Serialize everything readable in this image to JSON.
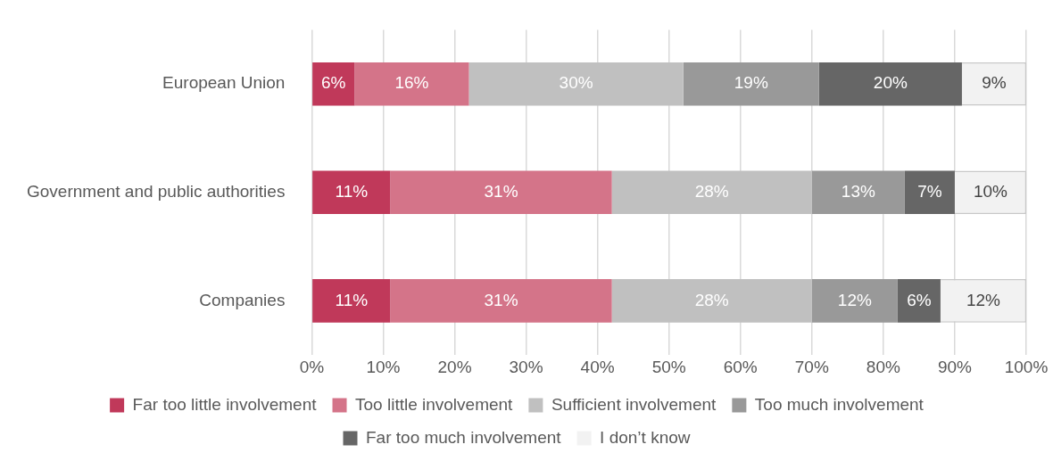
{
  "chart_data": {
    "type": "bar",
    "orientation": "horizontal",
    "stacked": true,
    "categories": [
      "European Union",
      "Government and public authorities",
      "Companies"
    ],
    "series": [
      {
        "name": "Far too little involvement",
        "color": "#c0395a",
        "values": [
          6,
          11,
          11
        ],
        "value_labels": [
          "6%",
          "11%",
          "11%"
        ]
      },
      {
        "name": "Too little involvement",
        "color": "#d47489",
        "values": [
          16,
          31,
          31
        ],
        "value_labels": [
          "16%",
          "31%",
          "31%"
        ]
      },
      {
        "name": "Sufficient involvement",
        "color": "#c0c0c0",
        "values": [
          30,
          28,
          28
        ],
        "value_labels": [
          "30%",
          "28%",
          "28%"
        ]
      },
      {
        "name": "Too much involvement",
        "color": "#999999",
        "values": [
          19,
          13,
          12
        ],
        "value_labels": [
          "19%",
          "13%",
          "12%"
        ]
      },
      {
        "name": "Far too much involvement",
        "color": "#666666",
        "values": [
          20,
          7,
          6
        ],
        "value_labels": [
          "20%",
          "7%",
          "6%"
        ]
      },
      {
        "name": "I don’t know",
        "color": "#f2f2f2",
        "values": [
          9,
          10,
          12
        ],
        "value_labels": [
          "9%",
          "10%",
          "12%"
        ]
      }
    ],
    "xlim": [
      0,
      100
    ],
    "xticks": [
      {
        "value": 0,
        "label": "0%"
      },
      {
        "value": 10,
        "label": "10%"
      },
      {
        "value": 20,
        "label": "20%"
      },
      {
        "value": 30,
        "label": "30%"
      },
      {
        "value": 40,
        "label": "40%"
      },
      {
        "value": 50,
        "label": "50%"
      },
      {
        "value": 60,
        "label": "60%"
      },
      {
        "value": 70,
        "label": "70%"
      },
      {
        "value": 80,
        "label": "80%"
      },
      {
        "value": 90,
        "label": "90%"
      },
      {
        "value": 100,
        "label": "100%"
      }
    ],
    "grid": "x",
    "legend": "bottom"
  }
}
